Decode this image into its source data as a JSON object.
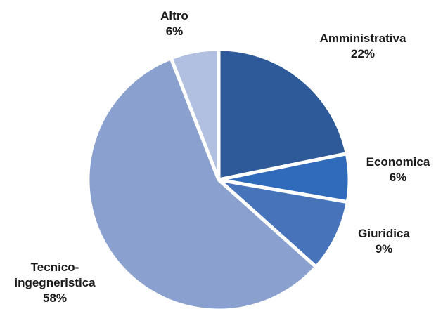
{
  "chart_data": {
    "type": "pie",
    "title": "",
    "slices": [
      {
        "label_lines": [
          "Amministrativa"
        ],
        "value": 22,
        "value_label": "22%",
        "color": "#2e5a9a"
      },
      {
        "label_lines": [
          "Economica"
        ],
        "value": 6,
        "value_label": "6%",
        "color": "#2f6bba"
      },
      {
        "label_lines": [
          "Giuridica"
        ],
        "value": 9,
        "value_label": "9%",
        "color": "#4673ba"
      },
      {
        "label_lines": [
          "Tecnico-",
          "ingegneristica"
        ],
        "value": 58,
        "value_label": "58%",
        "color": "#8aa0cf"
      },
      {
        "label_lines": [
          "Altro"
        ],
        "value": 6,
        "value_label": "6%",
        "color": "#b1c0e0"
      }
    ],
    "start": "12 o'clock",
    "direction": "clockwise",
    "legend": "none",
    "labels": "outside"
  }
}
